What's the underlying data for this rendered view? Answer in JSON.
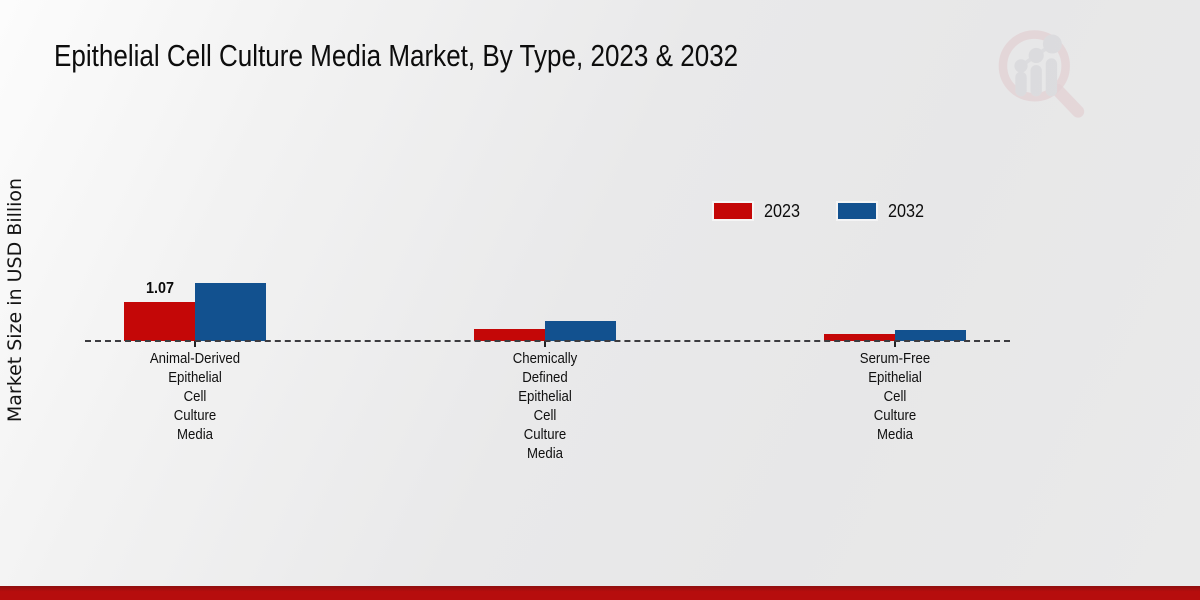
{
  "page": {
    "title": "Epithelial Cell Culture Media Market, By Type, 2023 & 2032",
    "ylabel": "Market Size in USD Billion"
  },
  "legend": {
    "items": [
      {
        "label": "2023",
        "color": "#c40707"
      },
      {
        "label": "2032",
        "color": "#12518f"
      }
    ]
  },
  "chart_data": {
    "type": "bar",
    "title": "Epithelial Cell Culture Media Market, By Type, 2023 & 2032",
    "ylabel": "Market Size in USD Billion",
    "categories": [
      "Animal-Derived Epithelial Cell Culture Media",
      "Chemically Defined Epithelial Cell Culture Media",
      "Serum-Free Epithelial Cell Culture Media"
    ],
    "category_label_lines": [
      [
        "Animal-Derived",
        "Epithelial",
        "Cell",
        "Culture",
        "Media"
      ],
      [
        "Chemically",
        "Defined",
        "Epithelial",
        "Cell",
        "Culture",
        "Media"
      ],
      [
        "Serum-Free",
        "Epithelial",
        "Cell",
        "Culture",
        "Media"
      ]
    ],
    "series": [
      {
        "name": "2023",
        "color": "#c40707",
        "values": [
          1.07,
          0.33,
          0.19
        ]
      },
      {
        "name": "2032",
        "color": "#12518f",
        "values": [
          1.59,
          0.55,
          0.3
        ]
      }
    ],
    "bar_labels": [
      [
        "1.07",
        "",
        ""
      ],
      [
        "",
        "",
        ""
      ]
    ],
    "ylim": [
      0,
      1.8
    ],
    "grid": false,
    "legend_position": "upper-right",
    "baseline_style": "dashed",
    "colors": {
      "accent_red": "#c40707",
      "accent_blue": "#12518f",
      "footer_red": "#b60d0d"
    }
  },
  "watermark": {
    "name": "magnifier-bar-chart-logo"
  }
}
